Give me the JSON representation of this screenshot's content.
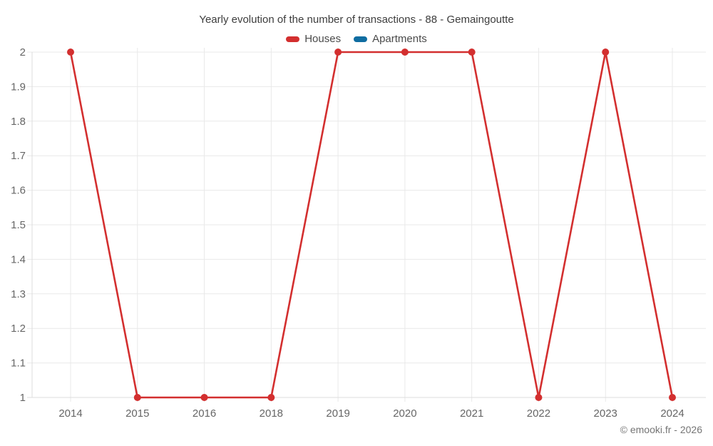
{
  "chart_data": {
    "type": "line",
    "title": "Yearly evolution of the number of transactions - 88 - Gemaingoutte",
    "categories": [
      "2014",
      "2015",
      "2016",
      "2018",
      "2019",
      "2020",
      "2021",
      "2022",
      "2023",
      "2024"
    ],
    "series": [
      {
        "name": "Houses",
        "color": "#d32f2f",
        "values": [
          2,
          1,
          1,
          1,
          2,
          2,
          2,
          1,
          2,
          1
        ]
      },
      {
        "name": "Apartments",
        "color": "#0f6da1",
        "values": []
      }
    ],
    "ylim": [
      1,
      2
    ],
    "yticks": [
      "1",
      "1.1",
      "1.2",
      "1.3",
      "1.4",
      "1.5",
      "1.6",
      "1.7",
      "1.8",
      "1.9",
      "2"
    ],
    "grid": true,
    "legend_position": "top",
    "grid_color": "#e9e9e9",
    "axis_color": "#dddddd",
    "tick_label_color": "#666666"
  },
  "footer": {
    "credit": "© emooki.fr - 2026"
  }
}
